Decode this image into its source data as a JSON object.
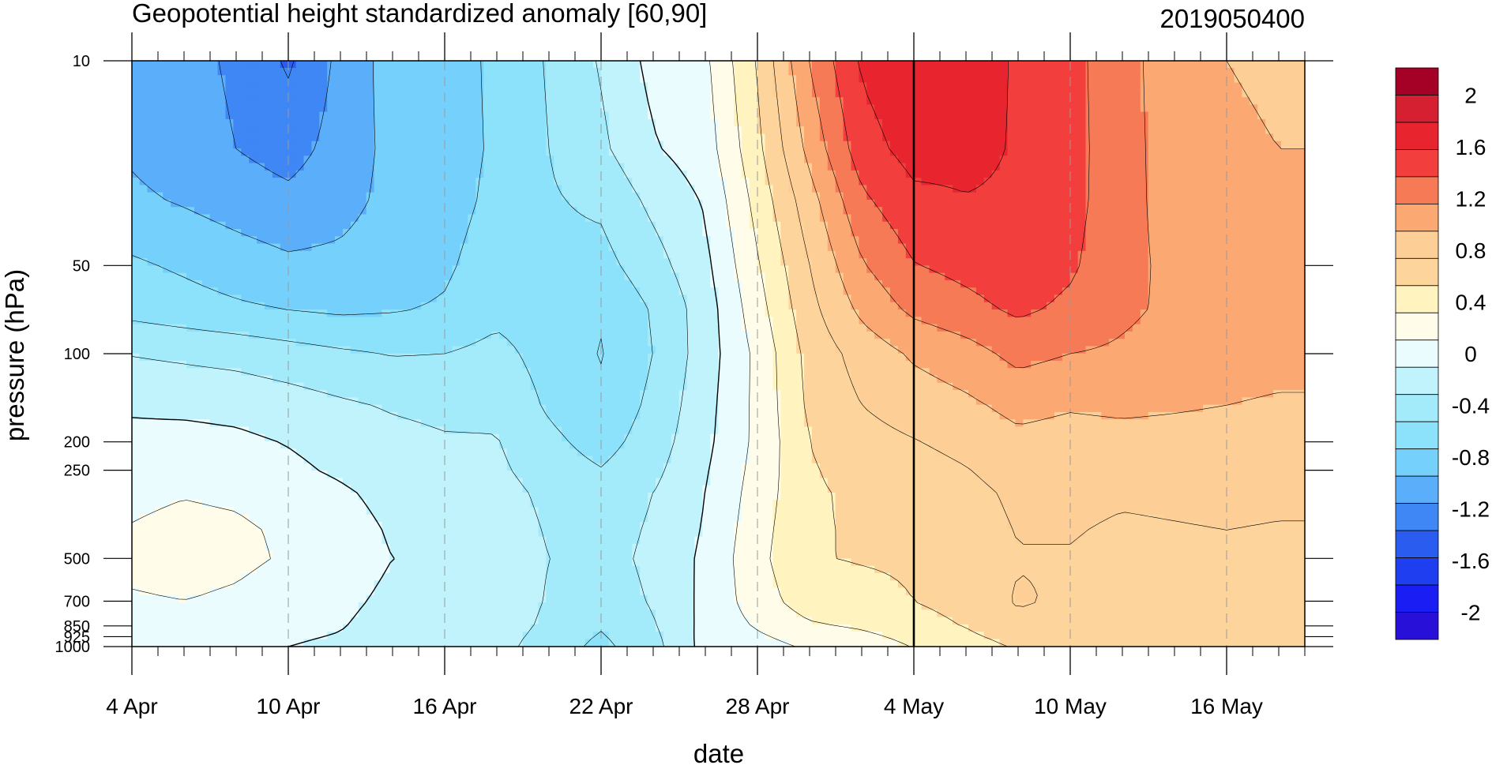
{
  "chart_data": {
    "type": "heatmap",
    "subtype": "filled-contour",
    "title": "Geopotential height standardized anomaly [60,90]",
    "right_title": "2019050400",
    "xlabel": "date",
    "ylabel": "pressure (hPa)",
    "x_range": [
      "2019-04-04",
      "2019-05-19"
    ],
    "x_ticks": [
      {
        "label": "4 Apr",
        "value": "2019-04-04"
      },
      {
        "label": "10 Apr",
        "value": "2019-04-10"
      },
      {
        "label": "16 Apr",
        "value": "2019-04-16"
      },
      {
        "label": "22 Apr",
        "value": "2019-04-22"
      },
      {
        "label": "28 Apr",
        "value": "2019-04-28"
      },
      {
        "label": "4 May",
        "value": "2019-05-04"
      },
      {
        "label": "10 May",
        "value": "2019-05-10"
      },
      {
        "label": "16 May",
        "value": "2019-05-16"
      }
    ],
    "y_scale": "log",
    "y_inverted": true,
    "y_range": [
      1000,
      10
    ],
    "y_ticks": [
      {
        "label": "10",
        "value": 10
      },
      {
        "label": "50",
        "value": 50
      },
      {
        "label": "100",
        "value": 100
      },
      {
        "label": "200",
        "value": 200
      },
      {
        "label": "250",
        "value": 250
      },
      {
        "label": "500",
        "value": 500
      },
      {
        "label": "700",
        "value": 700
      },
      {
        "label": "850",
        "value": 850
      },
      {
        "label": "925",
        "value": 925
      },
      {
        "label": "1000",
        "value": 1000
      }
    ],
    "reference_line": {
      "date": "2019-05-04",
      "style": "solid"
    },
    "levels": [
      -2,
      -1.8,
      -1.6,
      -1.4,
      -1.2,
      -1,
      -0.8,
      -0.6,
      -0.4,
      -0.2,
      0,
      0.2,
      0.4,
      0.6,
      0.8,
      1,
      1.2,
      1.4,
      1.6,
      1.8,
      2
    ],
    "colorbar": {
      "labels": [
        {
          "label": "2",
          "value": 2
        },
        {
          "label": "1.6",
          "value": 1.6
        },
        {
          "label": "1.2",
          "value": 1.2
        },
        {
          "label": "0.8",
          "value": 0.8
        },
        {
          "label": "0.4",
          "value": 0.4
        },
        {
          "label": "0",
          "value": 0
        },
        {
          "label": "-0.4",
          "value": -0.4
        },
        {
          "label": "-0.8",
          "value": -0.8
        },
        {
          "label": "-1.2",
          "value": -1.2
        },
        {
          "label": "-1.6",
          "value": -1.6
        },
        {
          "label": "-2",
          "value": -2
        }
      ],
      "colors_top_to_bottom": [
        "#a50026",
        "#d42030",
        "#e8242f",
        "#f23e3c",
        "#f77a56",
        "#fba872",
        "#fdcf96",
        "#fdd49b",
        "#fff3bf",
        "#fffde9",
        "#ebfcff",
        "#c0f3fc",
        "#a3ebfb",
        "#8ce2fa",
        "#75d1fb",
        "#5aaefa",
        "#3e87f5",
        "#2a5cf0",
        "#1e3ef0",
        "#1a1ef5",
        "#2810d8"
      ]
    },
    "pressures_top_to_bottom": [
      10,
      20,
      30,
      50,
      70,
      100,
      150,
      200,
      250,
      300,
      400,
      500,
      700,
      850,
      925,
      1000
    ],
    "series": [
      {
        "date": "2019-04-04",
        "values": [
          -0.83,
          -0.83,
          -0.76,
          -0.57,
          -0.47,
          -0.21,
          -0.02,
          0.04,
          0.1,
          0.16,
          0.21,
          0.25,
          0.18,
          0.1,
          0.06,
          0.0
        ]
      },
      {
        "date": "2019-04-06",
        "values": [
          -0.94,
          -0.92,
          -0.82,
          -0.63,
          -0.52,
          -0.24,
          -0.04,
          0.06,
          0.12,
          0.19,
          0.25,
          0.27,
          0.2,
          0.11,
          0.07,
          0.0
        ]
      },
      {
        "date": "2019-04-08",
        "values": [
          -1.03,
          -1.0,
          -0.89,
          -0.7,
          -0.57,
          -0.27,
          -0.06,
          0.04,
          0.1,
          0.17,
          0.23,
          0.24,
          0.17,
          0.09,
          0.05,
          0.0
        ]
      },
      {
        "date": "2019-04-10",
        "values": [
          -1.23,
          -1.08,
          -0.95,
          -0.76,
          -0.61,
          -0.32,
          -0.11,
          -0.01,
          0.04,
          0.11,
          0.17,
          0.18,
          0.11,
          0.05,
          0.02,
          0.0
        ]
      },
      {
        "date": "2019-04-12",
        "values": [
          -0.95,
          -0.92,
          -0.87,
          -0.75,
          -0.64,
          -0.37,
          -0.17,
          -0.07,
          -0.03,
          0.03,
          0.08,
          0.09,
          0.04,
          0.01,
          -0.01,
          -0.03
        ]
      },
      {
        "date": "2019-04-14",
        "values": [
          -0.71,
          -0.74,
          -0.74,
          -0.69,
          -0.62,
          -0.41,
          -0.22,
          -0.14,
          -0.11,
          -0.06,
          -0.02,
          0.0,
          -0.04,
          -0.07,
          -0.08,
          -0.1
        ]
      },
      {
        "date": "2019-04-16",
        "values": [
          -0.69,
          -0.69,
          -0.68,
          -0.63,
          -0.58,
          -0.4,
          -0.25,
          -0.18,
          -0.15,
          -0.1,
          -0.06,
          -0.03,
          -0.05,
          -0.08,
          -0.1,
          -0.12
        ]
      },
      {
        "date": "2019-04-18",
        "values": [
          -0.56,
          -0.57,
          -0.55,
          -0.5,
          -0.46,
          -0.34,
          -0.24,
          -0.19,
          -0.16,
          -0.12,
          -0.08,
          -0.05,
          -0.05,
          -0.08,
          -0.11,
          -0.13
        ]
      },
      {
        "date": "2019-04-20",
        "values": [
          -0.38,
          -0.4,
          -0.42,
          -0.45,
          -0.5,
          -0.48,
          -0.43,
          -0.35,
          -0.3,
          -0.25,
          -0.22,
          -0.2,
          -0.22,
          -0.25,
          -0.28,
          -0.3
        ]
      },
      {
        "date": "2019-04-22",
        "values": [
          -0.18,
          -0.24,
          -0.36,
          -0.47,
          -0.58,
          -0.61,
          -0.56,
          -0.48,
          -0.39,
          -0.33,
          -0.3,
          -0.28,
          -0.32,
          -0.38,
          -0.42,
          -0.45
        ]
      },
      {
        "date": "2019-04-24",
        "values": [
          0.06,
          -0.02,
          -0.15,
          -0.28,
          -0.38,
          -0.4,
          -0.35,
          -0.3,
          -0.25,
          -0.2,
          -0.17,
          -0.15,
          -0.18,
          -0.22,
          -0.25,
          -0.27
        ]
      },
      {
        "date": "2019-04-26",
        "values": [
          0.16,
          0.1,
          0.02,
          -0.05,
          -0.1,
          -0.1,
          -0.07,
          -0.05,
          -0.02,
          0.0,
          0.02,
          0.04,
          0.05,
          0.06,
          0.07,
          0.07
        ]
      },
      {
        "date": "2019-04-28",
        "values": [
          0.62,
          0.55,
          0.47,
          0.38,
          0.32,
          0.25,
          0.25,
          0.25,
          0.27,
          0.29,
          0.32,
          0.34,
          0.3,
          0.22,
          0.17,
          0.12
        ]
      },
      {
        "date": "2019-04-30",
        "values": [
          1.21,
          1.06,
          0.92,
          0.8,
          0.74,
          0.67,
          0.64,
          0.6,
          0.58,
          0.57,
          0.58,
          0.59,
          0.51,
          0.37,
          0.29,
          0.23
        ]
      },
      {
        "date": "2019-05-02",
        "values": [
          1.63,
          1.51,
          1.36,
          1.18,
          1.05,
          0.88,
          0.8,
          0.73,
          0.68,
          0.64,
          0.62,
          0.61,
          0.55,
          0.43,
          0.35,
          0.28
        ]
      },
      {
        "date": "2019-05-04",
        "values": [
          1.78,
          1.68,
          1.55,
          1.39,
          1.25,
          1.03,
          0.89,
          0.79,
          0.72,
          0.67,
          0.64,
          0.62,
          0.6,
          0.52,
          0.46,
          0.41
        ]
      },
      {
        "date": "2019-05-06",
        "values": [
          1.73,
          1.66,
          1.59,
          1.46,
          1.34,
          1.12,
          0.96,
          0.86,
          0.79,
          0.74,
          0.71,
          0.69,
          0.67,
          0.61,
          0.56,
          0.52
        ]
      },
      {
        "date": "2019-05-08",
        "values": [
          1.57,
          1.58,
          1.57,
          1.52,
          1.44,
          1.26,
          1.06,
          0.95,
          0.89,
          0.84,
          0.81,
          0.79,
          0.82,
          0.75,
          0.67,
          0.62
        ]
      },
      {
        "date": "2019-05-10",
        "values": [
          1.46,
          1.47,
          1.47,
          1.43,
          1.36,
          1.2,
          1.02,
          0.92,
          0.88,
          0.84,
          0.81,
          0.79,
          0.77,
          0.71,
          0.66,
          0.62
        ]
      },
      {
        "date": "2019-05-12",
        "values": [
          1.28,
          1.28,
          1.27,
          1.26,
          1.24,
          1.17,
          1.04,
          0.93,
          0.87,
          0.82,
          0.78,
          0.76,
          0.74,
          0.7,
          0.66,
          0.62
        ]
      },
      {
        "date": "2019-05-14",
        "values": [
          1.08,
          1.1,
          1.12,
          1.15,
          1.16,
          1.12,
          1.02,
          0.93,
          0.88,
          0.83,
          0.79,
          0.77,
          0.75,
          0.7,
          0.66,
          0.62
        ]
      },
      {
        "date": "2019-05-16",
        "values": [
          1.0,
          1.02,
          1.05,
          1.08,
          1.1,
          1.08,
          1.0,
          0.92,
          0.88,
          0.84,
          0.8,
          0.77,
          0.75,
          0.71,
          0.67,
          0.63
        ]
      },
      {
        "date": "2019-05-18",
        "values": [
          0.98,
          1.0,
          1.03,
          1.06,
          1.08,
          1.06,
          0.98,
          0.9,
          0.86,
          0.83,
          0.79,
          0.77,
          0.75,
          0.71,
          0.67,
          0.63
        ]
      },
      {
        "date": "2019-05-19",
        "values": [
          0.98,
          1.0,
          1.03,
          1.06,
          1.08,
          1.06,
          0.98,
          0.9,
          0.86,
          0.83,
          0.79,
          0.77,
          0.75,
          0.71,
          0.67,
          0.63
        ]
      }
    ]
  }
}
